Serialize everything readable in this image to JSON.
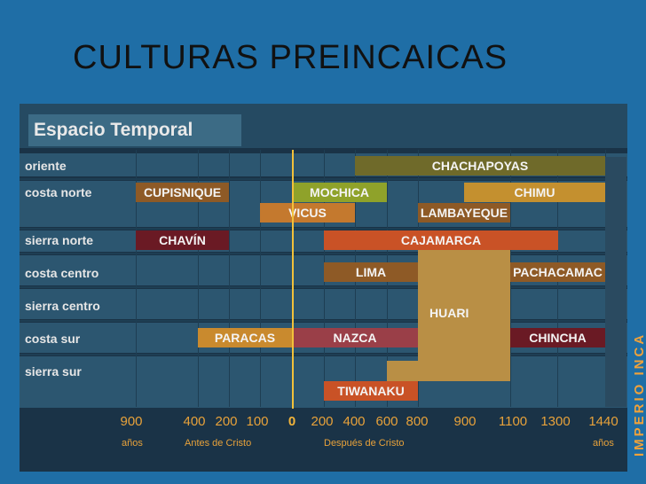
{
  "slide": {
    "title": "CULTURAS PREINCAICAS"
  },
  "diagram": {
    "header": "Espacio Temporal",
    "rows": [
      "oriente",
      "costa norte",
      "sierra norte",
      "costa centro",
      "sierra centro",
      "costa sur",
      "sierra sur"
    ],
    "cultures": {
      "chachapoyas": "CHACHAPOYAS",
      "cupisnique": "CUPISNIQUE",
      "mochica": "MOCHICA",
      "chimu": "CHIMU",
      "vicus": "VICUS",
      "lambayeque": "LAMBAYEQUE",
      "chavin": "CHAVÍN",
      "cajamarca": "CAJAMARCA",
      "lima": "LIMA",
      "pachacamac": "PACHACAMAC",
      "huari": "HUARI",
      "paracas": "PARACAS",
      "nazca": "NAZCA",
      "chincha": "CHINCHA",
      "tiwanaku": "TIWANAKU"
    },
    "empire": "IMPERIO INCA",
    "axis": {
      "ticks": [
        "900",
        "400",
        "200",
        "100",
        "0",
        "200",
        "400",
        "600",
        "800",
        "900",
        "1100",
        "1300",
        "1440"
      ],
      "left_unit": "años",
      "right_unit": "años",
      "bc_label": "Antes de Cristo",
      "ad_label": "Después de Cristo"
    },
    "colors": {
      "dark_orange": "#8e5a26",
      "orange": "#c4792e",
      "olive": "#6f6a2a",
      "green": "#8fa22a",
      "gold": "#c4902f",
      "maroon": "#6a1a24",
      "red_orange": "#c95226",
      "rose": "#9a3f48",
      "amber": "#c98a2e",
      "huari": "#b98f45",
      "inca": "#f0a23a"
    }
  }
}
